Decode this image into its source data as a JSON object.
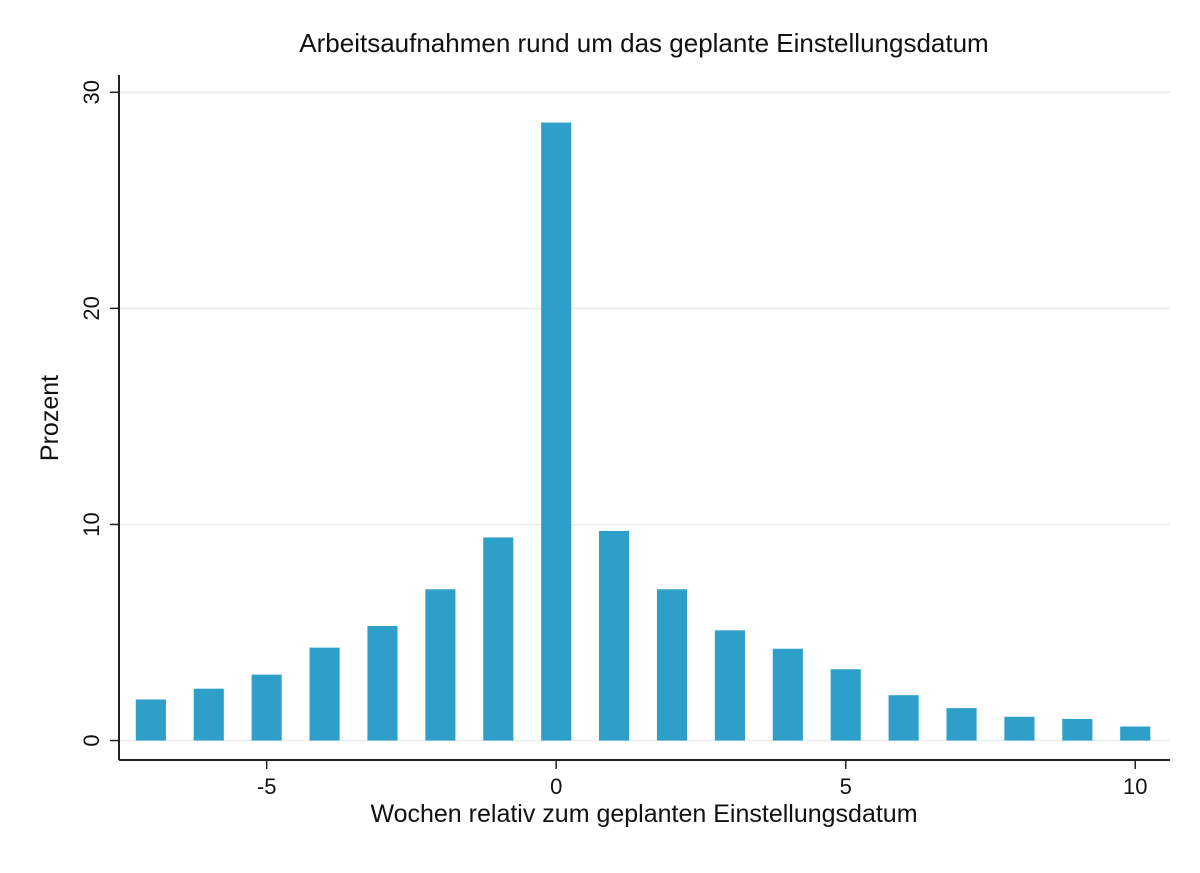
{
  "chart_data": {
    "type": "bar",
    "title": "Arbeitsaufnahmen rund um das geplante Einstellungsdatum",
    "x_label": "Wochen relativ zum geplanten Einstellungsdatum",
    "y_label": "Prozent",
    "x": [
      -7,
      -6,
      -5,
      -4,
      -3,
      -2,
      -1,
      0,
      1,
      2,
      3,
      4,
      5,
      6,
      7,
      8,
      9,
      10
    ],
    "values": [
      1.9,
      2.4,
      3.05,
      4.3,
      5.3,
      7.0,
      9.4,
      28.6,
      9.7,
      7.0,
      5.1,
      4.25,
      3.3,
      2.1,
      1.5,
      1.1,
      1.0,
      0.65
    ],
    "color": "#2e9fc9",
    "xlim": [
      -7.55,
      10.6
    ],
    "xticks": [
      -5,
      0,
      5,
      10
    ],
    "ylim": [
      -0.9,
      30.8
    ],
    "yticks": [
      0,
      10,
      20,
      30
    ],
    "grid": true
  }
}
